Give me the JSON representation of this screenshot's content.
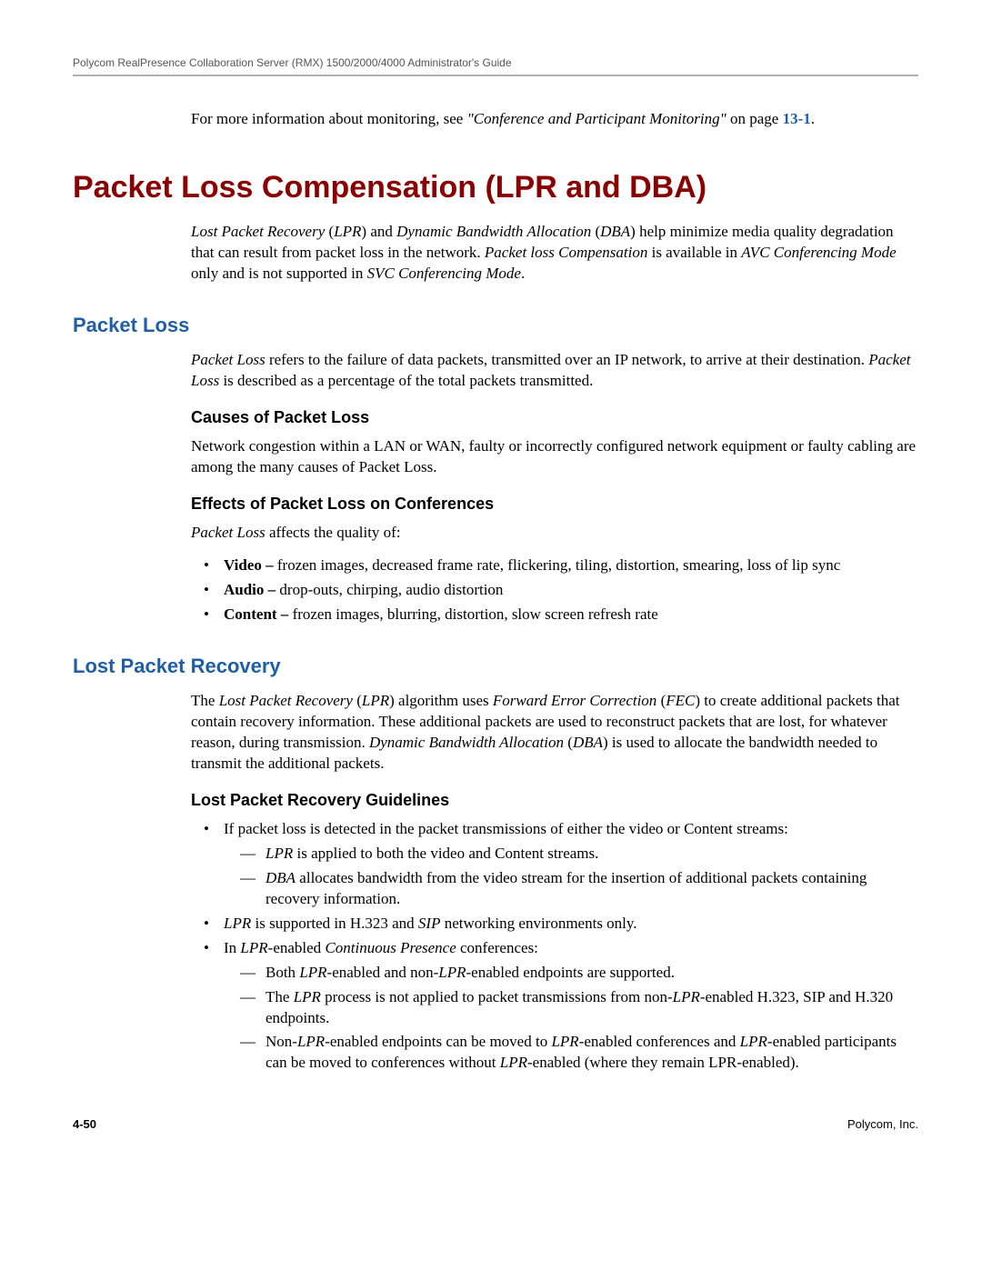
{
  "header": {
    "doc_title": "Polycom RealPresence Collaboration Server (RMX) 1500/2000/4000 Administrator's Guide"
  },
  "intro": {
    "line1_pre": "For more information about monitoring, see ",
    "line1_italic": "\"Conference and Participant Monitoring\"",
    "line1_post": " on page ",
    "page_ref": "13-1",
    "period": "."
  },
  "h1": "Packet Loss Compensation (LPR and DBA)",
  "h1_para": {
    "p1": "Lost Packet Recovery",
    "p2": " (",
    "p3": "LPR",
    "p4": ") and ",
    "p5": "Dynamic Bandwidth Allocation",
    "p6": " (",
    "p7": "DBA",
    "p8": ") help minimize media quality degradation that can result from packet loss in the network. ",
    "p9": "Packet loss Compensation",
    "p10": " is available in ",
    "p11": "AVC Conferencing Mode",
    "p12": " only and is not supported in ",
    "p13": "SVC Conferencing Mode",
    "p14": "."
  },
  "h2a": "Packet Loss",
  "h2a_para": {
    "p1": "Packet Loss",
    "p2": " refers to the failure of data packets, transmitted over an IP network, to arrive at their destination. ",
    "p3": "Packet Loss",
    "p4": " is described as a percentage of the total packets transmitted."
  },
  "h3a": "Causes of Packet Loss",
  "h3a_para": "Network congestion within a LAN or WAN, faulty or incorrectly configured network equipment or faulty cabling are among the many causes of Packet Loss.",
  "h3b": "Effects of Packet Loss on Conferences",
  "h3b_intro_pre": "Packet Loss",
  "h3b_intro_post": " affects the quality of:",
  "effects": [
    {
      "bold": "Video – ",
      "rest": "frozen images, decreased frame rate, flickering, tiling, distortion, smearing, loss of lip sync"
    },
    {
      "bold": "Audio – ",
      "rest": "drop-outs, chirping, audio distortion"
    },
    {
      "bold": "Content – ",
      "rest": "frozen images, blurring, distortion, slow screen refresh rate"
    }
  ],
  "h2b": "Lost Packet Recovery",
  "h2b_para": {
    "p1": "The ",
    "p2": "Lost Packet Recovery",
    "p3": " (",
    "p4": "LPR",
    "p5": ") algorithm uses ",
    "p6": "Forward Error Correction",
    "p7": " (",
    "p8": "FEC",
    "p9": ") to create additional packets that contain recovery information. These additional packets are used to reconstruct packets that are lost, for whatever reason, during transmission. ",
    "p10": "Dynamic Bandwidth Allocation",
    "p11": " (",
    "p12": "DBA",
    "p13": ") is used to allocate the bandwidth needed to transmit the additional packets."
  },
  "h3c": "Lost Packet Recovery Guidelines",
  "footer": {
    "page": "4-50",
    "company": "Polycom, Inc."
  }
}
